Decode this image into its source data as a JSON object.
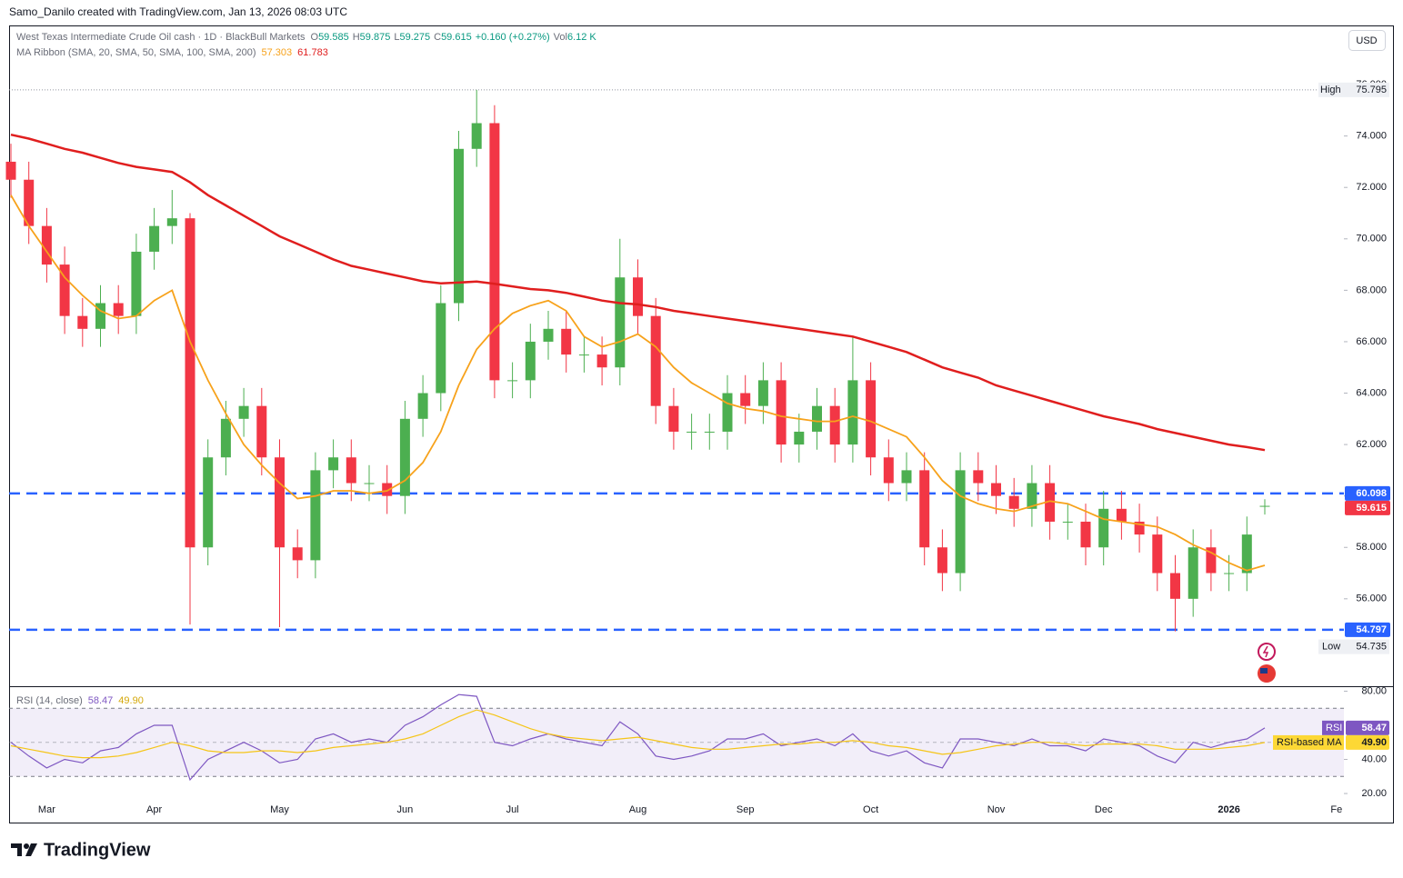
{
  "header": {
    "attribution": "Samo_Danilo created with TradingView.com, Jan 13, 2026 08:03 UTC",
    "currency": "USD",
    "brand": "TradingView"
  },
  "chart_data": [
    {
      "type": "candlestick",
      "legend": {
        "symbol": "West Texas Intermediate Crude Oil cash · 1D · BlackBull Markets",
        "open_label": "O",
        "open": "59.585",
        "high_label": "H",
        "high": "59.875",
        "low_label": "L",
        "low": "59.275",
        "close_label": "C",
        "close": "59.615",
        "change": "+0.160 (+0.27%)",
        "vol_label": "Vol",
        "vol": "6.12 K"
      },
      "indicator": {
        "name": "MA Ribbon (SMA, 20, SMA, 50, SMA, 100, SMA, 200)",
        "values": [
          "57.303",
          "61.783"
        ],
        "colors": [
          "#f7a21b",
          "#e01e1e"
        ]
      },
      "categories": [
        null,
        null,
        "Mar",
        null,
        null,
        null,
        null,
        null,
        "Apr",
        null,
        null,
        null,
        null,
        null,
        null,
        "May",
        null,
        null,
        null,
        null,
        null,
        null,
        "Jun",
        null,
        null,
        null,
        null,
        null,
        "Jul",
        null,
        null,
        null,
        null,
        null,
        null,
        "Aug",
        null,
        null,
        null,
        null,
        null,
        "Sep",
        null,
        null,
        null,
        null,
        null,
        null,
        "Oct",
        null,
        null,
        null,
        null,
        null,
        null,
        "Nov",
        null,
        null,
        null,
        null,
        null,
        "Dec",
        null,
        null,
        null,
        null,
        null,
        null,
        "2026",
        null,
        null,
        null,
        null,
        null,
        "Fe"
      ],
      "open": [
        73.0,
        72.3,
        70.5,
        69.0,
        67.0,
        66.5,
        67.5,
        67.0,
        69.5,
        70.5,
        70.8,
        58.0,
        61.5,
        63.0,
        63.5,
        61.5,
        58.0,
        57.5,
        61.0,
        61.5,
        60.5,
        60.5,
        60.0,
        63.0,
        64.0,
        67.5,
        73.5,
        74.5,
        64.5,
        64.5,
        66.0,
        66.5,
        65.5,
        65.5,
        65.0,
        68.5,
        67.0,
        63.5,
        62.5,
        62.5,
        62.5,
        64.0,
        63.5,
        64.5,
        62.0,
        62.5,
        63.5,
        62.0,
        64.5,
        61.5,
        60.5,
        61.0,
        58.0,
        57.0,
        61.0,
        60.5,
        60.0,
        59.5,
        60.5,
        59.0,
        59.0,
        58.0,
        59.5,
        59.0,
        58.5,
        57.0,
        56.0,
        58.0,
        57.0,
        57.0,
        59.585,
        null,
        null,
        null,
        null
      ],
      "high": [
        73.7,
        73.0,
        71.2,
        69.7,
        67.7,
        68.2,
        68.2,
        70.2,
        71.2,
        71.9,
        71.0,
        62.2,
        63.7,
        64.2,
        64.2,
        62.2,
        58.7,
        61.7,
        62.2,
        62.2,
        61.2,
        61.2,
        63.7,
        64.7,
        68.2,
        74.2,
        75.795,
        75.2,
        65.2,
        66.7,
        67.2,
        67.2,
        66.2,
        66.2,
        70.0,
        69.2,
        67.7,
        64.2,
        63.2,
        63.2,
        64.7,
        64.7,
        65.2,
        65.2,
        63.2,
        64.2,
        64.2,
        66.2,
        65.2,
        62.2,
        61.7,
        61.7,
        58.7,
        61.7,
        61.7,
        61.2,
        60.7,
        61.2,
        61.2,
        59.7,
        59.7,
        60.2,
        60.2,
        59.7,
        59.2,
        57.7,
        58.7,
        58.7,
        57.7,
        59.2,
        59.875,
        null,
        null,
        null,
        null
      ],
      "low": [
        71.6,
        69.8,
        68.3,
        66.3,
        65.8,
        65.8,
        66.3,
        66.3,
        68.8,
        69.8,
        55.0,
        57.3,
        60.8,
        62.3,
        60.8,
        54.9,
        56.8,
        56.8,
        60.3,
        59.8,
        59.8,
        59.3,
        59.3,
        62.3,
        63.3,
        66.8,
        72.8,
        63.8,
        63.8,
        63.8,
        65.3,
        64.8,
        64.8,
        64.3,
        64.3,
        66.3,
        62.8,
        61.8,
        61.8,
        61.8,
        61.8,
        62.8,
        62.8,
        61.3,
        61.3,
        61.8,
        61.3,
        61.3,
        60.8,
        59.8,
        59.8,
        57.3,
        56.3,
        56.3,
        59.8,
        59.3,
        58.8,
        58.8,
        58.3,
        58.3,
        57.3,
        57.3,
        58.3,
        57.8,
        56.3,
        54.735,
        55.3,
        56.3,
        56.3,
        56.3,
        59.275,
        null,
        null,
        null,
        null
      ],
      "close": [
        72.3,
        70.5,
        69.0,
        67.0,
        66.5,
        67.5,
        67.0,
        69.5,
        70.5,
        70.8,
        58.0,
        61.5,
        63.0,
        63.5,
        61.5,
        58.0,
        57.5,
        61.0,
        61.5,
        60.5,
        60.5,
        60.0,
        63.0,
        64.0,
        67.5,
        73.5,
        74.5,
        64.5,
        64.5,
        66.0,
        66.5,
        65.5,
        65.5,
        65.0,
        68.5,
        67.0,
        63.5,
        62.5,
        62.5,
        62.5,
        64.0,
        63.5,
        64.5,
        62.0,
        62.5,
        63.5,
        62.0,
        64.5,
        61.5,
        60.5,
        61.0,
        58.0,
        57.0,
        61.0,
        60.5,
        60.0,
        59.5,
        60.5,
        59.0,
        59.0,
        58.0,
        59.5,
        59.0,
        58.5,
        57.0,
        56.0,
        58.0,
        57.0,
        57.0,
        58.5,
        59.615,
        null,
        null,
        null,
        null
      ],
      "up_color": "#4caf50",
      "down_color": "#f23645",
      "lines": [
        {
          "color": "#f7a21b",
          "values": [
            71.7,
            70.5,
            69.5,
            68.5,
            67.8,
            67.2,
            66.9,
            67.0,
            67.6,
            68.0,
            66.0,
            64.5,
            63.2,
            62.0,
            61.2,
            60.5,
            59.9,
            60.0,
            60.2,
            60.2,
            60.1,
            60.2,
            60.6,
            61.3,
            62.5,
            64.3,
            65.7,
            66.5,
            67.1,
            67.4,
            67.6,
            67.2,
            66.2,
            65.8,
            66.0,
            66.3,
            65.8,
            65.0,
            64.4,
            64.0,
            63.6,
            63.4,
            63.3,
            63.1,
            63.0,
            62.9,
            62.9,
            63.1,
            62.9,
            62.6,
            62.3,
            61.5,
            60.6,
            60.0,
            59.7,
            59.5,
            59.4,
            59.6,
            59.8,
            59.7,
            59.4,
            59.1,
            59.0,
            58.9,
            58.8,
            58.5,
            58.1,
            57.8,
            57.4,
            57.1,
            57.303,
            null,
            null,
            null,
            null
          ]
        },
        {
          "color": "#e01e1e",
          "values": [
            74.05,
            73.9,
            73.7,
            73.5,
            73.35,
            73.15,
            72.95,
            72.8,
            72.7,
            72.6,
            72.2,
            71.7,
            71.3,
            70.9,
            70.5,
            70.1,
            69.8,
            69.5,
            69.2,
            68.95,
            68.8,
            68.65,
            68.5,
            68.35,
            68.27,
            68.3,
            68.34,
            68.25,
            68.15,
            68.05,
            68.0,
            67.9,
            67.75,
            67.6,
            67.5,
            67.45,
            67.35,
            67.2,
            67.1,
            67.0,
            66.9,
            66.8,
            66.7,
            66.6,
            66.5,
            66.4,
            66.3,
            66.2,
            66.0,
            65.8,
            65.6,
            65.3,
            65.0,
            64.8,
            64.6,
            64.3,
            64.1,
            63.9,
            63.7,
            63.5,
            63.3,
            63.1,
            62.95,
            62.8,
            62.6,
            62.45,
            62.3,
            62.15,
            62.0,
            61.9,
            61.783,
            null,
            null,
            null,
            null
          ]
        }
      ],
      "levels": [
        {
          "value": 60.098,
          "color": "#2962ff"
        },
        {
          "value": 54.797,
          "color": "#2962ff"
        }
      ],
      "high_mark": {
        "label": "High",
        "value": 75.795
      },
      "low_mark": {
        "label": "Low",
        "value": 54.735
      },
      "ylim": [
        52.6,
        78.3
      ],
      "yticks": [
        {
          "value": 56,
          "label": "56.000"
        },
        {
          "value": 58,
          "label": "58.000"
        },
        {
          "value": 60,
          "label": "60.000"
        },
        {
          "value": 62,
          "label": "62.000"
        },
        {
          "value": 64,
          "label": "64.000"
        },
        {
          "value": 66,
          "label": "66.000"
        },
        {
          "value": 68,
          "label": "68.000"
        },
        {
          "value": 70,
          "label": "70.000"
        },
        {
          "value": 72,
          "label": "72.000"
        },
        {
          "value": 74,
          "label": "74.000"
        },
        {
          "value": 76,
          "label": "76.000"
        }
      ]
    },
    {
      "type": "line",
      "title": "RSI (14, close)",
      "legend_values": [
        "58.47",
        "49.90"
      ],
      "series": [
        {
          "name": "RSI",
          "color": "#7e57c2",
          "values": [
            50,
            42,
            35,
            40,
            38,
            45,
            47,
            55,
            60,
            60,
            28,
            40,
            45,
            50,
            45,
            38,
            40,
            52,
            55,
            50,
            52,
            50,
            60,
            65,
            72,
            78,
            77,
            50,
            48,
            52,
            55,
            52,
            50,
            48,
            62,
            55,
            42,
            40,
            42,
            45,
            52,
            52,
            55,
            48,
            50,
            52,
            48,
            55,
            45,
            42,
            45,
            38,
            35,
            52,
            52,
            50,
            48,
            52,
            48,
            48,
            45,
            52,
            50,
            48,
            42,
            38,
            50,
            47,
            50,
            52,
            58.47,
            null,
            null,
            null,
            null
          ]
        },
        {
          "name": "RSI-based MA",
          "color": "#f5c518",
          "values": [
            48,
            46,
            44,
            42,
            41,
            41,
            42,
            44,
            47,
            50,
            48,
            45,
            44,
            44,
            45,
            45,
            44,
            45,
            47,
            48,
            49,
            50,
            52,
            55,
            60,
            65,
            69,
            66,
            62,
            58,
            55,
            53,
            52,
            51,
            52,
            53,
            51,
            49,
            47,
            46,
            46,
            47,
            48,
            49,
            49,
            50,
            50,
            51,
            50,
            48,
            47,
            45,
            43,
            44,
            46,
            48,
            49,
            50,
            50,
            49,
            48,
            49,
            49,
            49,
            48,
            46,
            46,
            46,
            47,
            48,
            49.9,
            null,
            null,
            null,
            null
          ]
        }
      ],
      "band": [
        30,
        70
      ],
      "midline": 50,
      "ylim": [
        16.3,
        82.9
      ],
      "yticks": [
        {
          "value": 20,
          "label": "20.00"
        },
        {
          "value": 40,
          "label": "40.00"
        },
        {
          "value": 80,
          "label": "80.00"
        }
      ]
    }
  ]
}
